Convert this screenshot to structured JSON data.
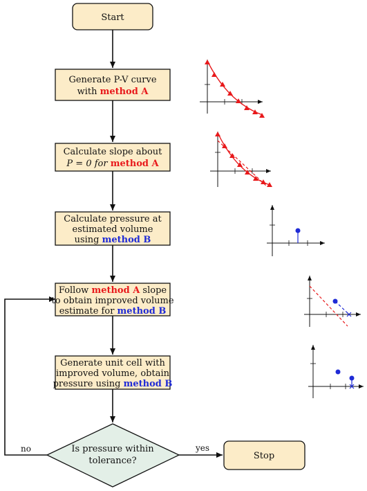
{
  "colors": {
    "process_fill": "#fcecc8",
    "decision_fill": "#e3efe7",
    "stroke": "#111111",
    "method_a": "#e8191b",
    "method_b": "#1f2bd6",
    "axis": "#111111"
  },
  "nodes": {
    "start": {
      "text": "Start"
    },
    "step1": {
      "line1": "Generate P-V curve",
      "line2_prefix": "with ",
      "line2_method": "method A"
    },
    "step2": {
      "line1": "Calculate slope about",
      "line2_eq": "P = 0 for ",
      "line2_method": "method A"
    },
    "step3": {
      "line1": "Calculate pressure at",
      "line2": "estimated volume",
      "line3_prefix": "using ",
      "line3_method": "method B"
    },
    "step4": {
      "line1_prefix": "Follow ",
      "line1_method": "method A",
      "line1_suffix": " slope",
      "line2": "to obtain improved volume",
      "line3_prefix": "estimate for ",
      "line3_method": "method B"
    },
    "step5": {
      "line1": "Generate unit cell with",
      "line2": "improved volume, obtain",
      "line3_prefix": "pressure using ",
      "line3_method": "method B"
    },
    "decision": {
      "line1": "Is pressure within",
      "line2": "tolerance?"
    },
    "stop": {
      "text": "Stop"
    }
  },
  "edges": {
    "no_label": "no",
    "yes_label": "yes"
  },
  "icons": [
    "pv-curve-icon",
    "slope-curve-icon",
    "pressure-point-icon",
    "slope-extrapolation-icon",
    "improved-pressure-icon"
  ]
}
